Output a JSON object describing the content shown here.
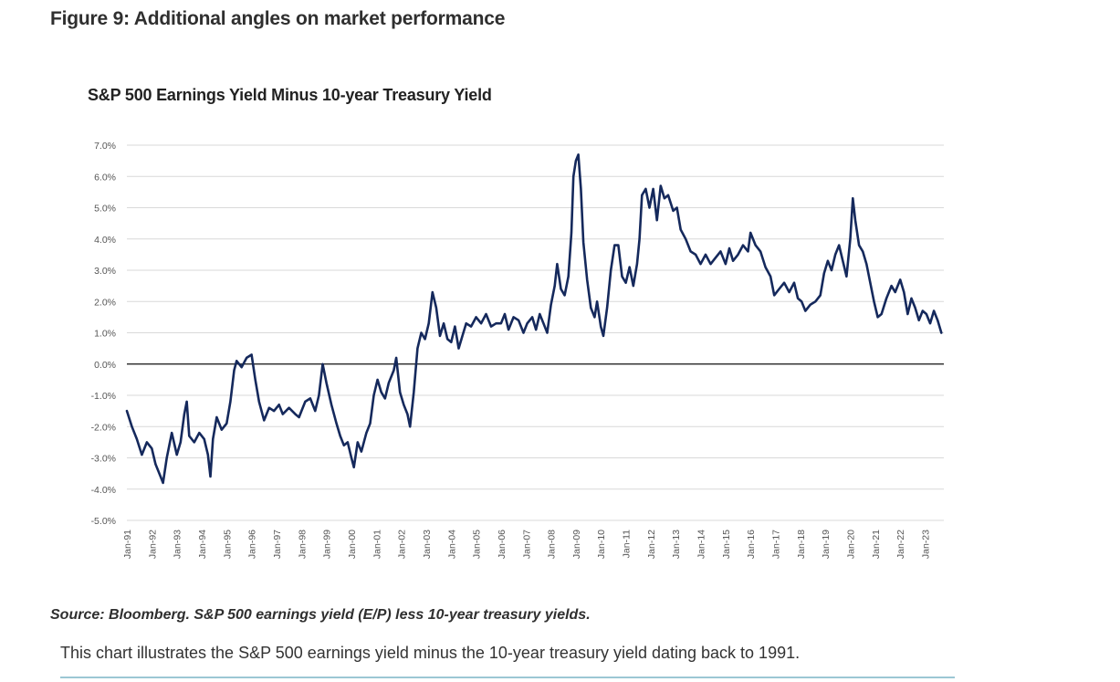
{
  "page": {
    "figure_title": "Figure 9: Additional angles on market performance",
    "source": "Source: Bloomberg. S&P 500 earnings yield (E/P) less 10-year treasury yields.",
    "caption": "This chart illustrates the S&P 500 earnings yield minus the 10-year treasury yield dating back to 1991."
  },
  "chart_data": {
    "type": "line",
    "title": "S&P 500 Earnings Yield Minus 10-year Treasury Yield",
    "xlabel": "",
    "ylabel": "",
    "ylim": [
      -5,
      7
    ],
    "yticks": [
      7,
      6,
      5,
      4,
      3,
      2,
      1,
      0,
      -1,
      -2,
      -3,
      -4,
      -5
    ],
    "ytick_labels": [
      "7.0%",
      "6.0%",
      "5.0%",
      "4.0%",
      "3.0%",
      "2.0%",
      "1.0%",
      "0.0%",
      "-1.0%",
      "-2.0%",
      "-3.0%",
      "-4.0%",
      "-5.0%"
    ],
    "xlim": [
      1991.0,
      2023.75
    ],
    "xticks": [
      1991,
      1992,
      1993,
      1994,
      1995,
      1996,
      1997,
      1998,
      1999,
      2000,
      2001,
      2002,
      2003,
      2004,
      2005,
      2006,
      2007,
      2008,
      2009,
      2010,
      2011,
      2012,
      2013,
      2014,
      2015,
      2016,
      2017,
      2018,
      2019,
      2020,
      2021,
      2022,
      2023
    ],
    "xtick_labels": [
      "Jan-91",
      "Jan-92",
      "Jan-93",
      "Jan-94",
      "Jan-95",
      "Jan-96",
      "Jan-97",
      "Jan-98",
      "Jan-99",
      "Jan-00",
      "Jan-01",
      "Jan-02",
      "Jan-03",
      "Jan-04",
      "Jan-05",
      "Jan-06",
      "Jan-07",
      "Jan-08",
      "Jan-09",
      "Jan-10",
      "Jan-11",
      "Jan-12",
      "Jan-13",
      "Jan-14",
      "Jan-15",
      "Jan-16",
      "Jan-17",
      "Jan-18",
      "Jan-19",
      "Jan-20",
      "Jan-21",
      "Jan-22",
      "Jan-23"
    ],
    "grid": true,
    "zero_line": true,
    "legend": "none",
    "line_color": "#15295c",
    "grid_color": "#d9d9d9",
    "series": [
      {
        "name": "",
        "points": [
          [
            1991.0,
            -1.5
          ],
          [
            1991.2,
            -2.0
          ],
          [
            1991.4,
            -2.4
          ],
          [
            1991.6,
            -2.9
          ],
          [
            1991.8,
            -2.5
          ],
          [
            1992.0,
            -2.7
          ],
          [
            1992.15,
            -3.2
          ],
          [
            1992.35,
            -3.6
          ],
          [
            1992.45,
            -3.8
          ],
          [
            1992.6,
            -3.0
          ],
          [
            1992.8,
            -2.2
          ],
          [
            1993.0,
            -2.9
          ],
          [
            1993.15,
            -2.5
          ],
          [
            1993.3,
            -1.6
          ],
          [
            1993.4,
            -1.2
          ],
          [
            1993.5,
            -2.3
          ],
          [
            1993.7,
            -2.5
          ],
          [
            1993.9,
            -2.2
          ],
          [
            1994.1,
            -2.4
          ],
          [
            1994.25,
            -2.9
          ],
          [
            1994.35,
            -3.6
          ],
          [
            1994.45,
            -2.4
          ],
          [
            1994.6,
            -1.7
          ],
          [
            1994.8,
            -2.1
          ],
          [
            1995.0,
            -1.9
          ],
          [
            1995.15,
            -1.2
          ],
          [
            1995.3,
            -0.2
          ],
          [
            1995.4,
            0.1
          ],
          [
            1995.6,
            -0.1
          ],
          [
            1995.8,
            0.2
          ],
          [
            1996.0,
            0.3
          ],
          [
            1996.15,
            -0.5
          ],
          [
            1996.3,
            -1.2
          ],
          [
            1996.5,
            -1.8
          ],
          [
            1996.7,
            -1.4
          ],
          [
            1996.9,
            -1.5
          ],
          [
            1997.1,
            -1.3
          ],
          [
            1997.25,
            -1.6
          ],
          [
            1997.5,
            -1.4
          ],
          [
            1997.75,
            -1.6
          ],
          [
            1997.9,
            -1.7
          ],
          [
            1998.0,
            -1.5
          ],
          [
            1998.15,
            -1.2
          ],
          [
            1998.35,
            -1.1
          ],
          [
            1998.55,
            -1.5
          ],
          [
            1998.7,
            -1.0
          ],
          [
            1998.85,
            0.0
          ],
          [
            1999.0,
            -0.6
          ],
          [
            1999.2,
            -1.3
          ],
          [
            1999.4,
            -1.9
          ],
          [
            1999.55,
            -2.3
          ],
          [
            1999.7,
            -2.6
          ],
          [
            1999.85,
            -2.5
          ],
          [
            2000.0,
            -3.0
          ],
          [
            2000.1,
            -3.3
          ],
          [
            2000.25,
            -2.5
          ],
          [
            2000.4,
            -2.8
          ],
          [
            2000.6,
            -2.2
          ],
          [
            2000.75,
            -1.9
          ],
          [
            2000.9,
            -1.0
          ],
          [
            2001.05,
            -0.5
          ],
          [
            2001.2,
            -0.9
          ],
          [
            2001.35,
            -1.1
          ],
          [
            2001.5,
            -0.6
          ],
          [
            2001.7,
            -0.2
          ],
          [
            2001.8,
            0.2
          ],
          [
            2001.95,
            -0.9
          ],
          [
            2002.1,
            -1.3
          ],
          [
            2002.25,
            -1.6
          ],
          [
            2002.35,
            -2.0
          ],
          [
            2002.5,
            -0.9
          ],
          [
            2002.65,
            0.5
          ],
          [
            2002.8,
            1.0
          ],
          [
            2002.95,
            0.8
          ],
          [
            2003.1,
            1.3
          ],
          [
            2003.25,
            2.3
          ],
          [
            2003.4,
            1.8
          ],
          [
            2003.55,
            0.9
          ],
          [
            2003.7,
            1.3
          ],
          [
            2003.85,
            0.8
          ],
          [
            2004.0,
            0.7
          ],
          [
            2004.15,
            1.2
          ],
          [
            2004.3,
            0.5
          ],
          [
            2004.45,
            0.9
          ],
          [
            2004.6,
            1.3
          ],
          [
            2004.8,
            1.2
          ],
          [
            2005.0,
            1.5
          ],
          [
            2005.2,
            1.3
          ],
          [
            2005.4,
            1.6
          ],
          [
            2005.6,
            1.2
          ],
          [
            2005.8,
            1.3
          ],
          [
            2006.0,
            1.3
          ],
          [
            2006.15,
            1.6
          ],
          [
            2006.3,
            1.1
          ],
          [
            2006.5,
            1.5
          ],
          [
            2006.7,
            1.4
          ],
          [
            2006.9,
            1.0
          ],
          [
            2007.05,
            1.3
          ],
          [
            2007.25,
            1.5
          ],
          [
            2007.4,
            1.1
          ],
          [
            2007.55,
            1.6
          ],
          [
            2007.7,
            1.3
          ],
          [
            2007.85,
            1.0
          ],
          [
            2008.0,
            1.9
          ],
          [
            2008.15,
            2.5
          ],
          [
            2008.25,
            3.2
          ],
          [
            2008.4,
            2.4
          ],
          [
            2008.55,
            2.2
          ],
          [
            2008.7,
            2.8
          ],
          [
            2008.82,
            4.2
          ],
          [
            2008.9,
            6.0
          ],
          [
            2009.0,
            6.5
          ],
          [
            2009.1,
            6.7
          ],
          [
            2009.2,
            5.6
          ],
          [
            2009.3,
            3.9
          ],
          [
            2009.45,
            2.7
          ],
          [
            2009.6,
            1.8
          ],
          [
            2009.75,
            1.5
          ],
          [
            2009.85,
            2.0
          ],
          [
            2010.0,
            1.2
          ],
          [
            2010.1,
            0.9
          ],
          [
            2010.25,
            1.8
          ],
          [
            2010.4,
            3.0
          ],
          [
            2010.55,
            3.8
          ],
          [
            2010.7,
            3.8
          ],
          [
            2010.85,
            2.8
          ],
          [
            2011.0,
            2.6
          ],
          [
            2011.15,
            3.1
          ],
          [
            2011.3,
            2.5
          ],
          [
            2011.45,
            3.2
          ],
          [
            2011.55,
            4.0
          ],
          [
            2011.65,
            5.4
          ],
          [
            2011.8,
            5.6
          ],
          [
            2011.95,
            5.0
          ],
          [
            2012.1,
            5.6
          ],
          [
            2012.25,
            4.6
          ],
          [
            2012.4,
            5.7
          ],
          [
            2012.55,
            5.3
          ],
          [
            2012.7,
            5.4
          ],
          [
            2012.9,
            4.9
          ],
          [
            2013.05,
            5.0
          ],
          [
            2013.2,
            4.3
          ],
          [
            2013.4,
            4.0
          ],
          [
            2013.6,
            3.6
          ],
          [
            2013.8,
            3.5
          ],
          [
            2014.0,
            3.2
          ],
          [
            2014.2,
            3.5
          ],
          [
            2014.4,
            3.2
          ],
          [
            2014.6,
            3.4
          ],
          [
            2014.8,
            3.6
          ],
          [
            2015.0,
            3.2
          ],
          [
            2015.15,
            3.7
          ],
          [
            2015.3,
            3.3
          ],
          [
            2015.5,
            3.5
          ],
          [
            2015.7,
            3.8
          ],
          [
            2015.9,
            3.6
          ],
          [
            2016.0,
            4.2
          ],
          [
            2016.2,
            3.8
          ],
          [
            2016.4,
            3.6
          ],
          [
            2016.6,
            3.1
          ],
          [
            2016.8,
            2.8
          ],
          [
            2016.95,
            2.2
          ],
          [
            2017.15,
            2.4
          ],
          [
            2017.35,
            2.6
          ],
          [
            2017.55,
            2.3
          ],
          [
            2017.75,
            2.6
          ],
          [
            2017.9,
            2.1
          ],
          [
            2018.05,
            2.0
          ],
          [
            2018.2,
            1.7
          ],
          [
            2018.4,
            1.9
          ],
          [
            2018.6,
            2.0
          ],
          [
            2018.8,
            2.2
          ],
          [
            2018.95,
            2.9
          ],
          [
            2019.1,
            3.3
          ],
          [
            2019.25,
            3.0
          ],
          [
            2019.4,
            3.5
          ],
          [
            2019.55,
            3.8
          ],
          [
            2019.7,
            3.3
          ],
          [
            2019.85,
            2.8
          ],
          [
            2020.0,
            4.0
          ],
          [
            2020.1,
            5.3
          ],
          [
            2020.2,
            4.6
          ],
          [
            2020.35,
            3.8
          ],
          [
            2020.5,
            3.6
          ],
          [
            2020.65,
            3.2
          ],
          [
            2020.8,
            2.6
          ],
          [
            2020.95,
            2.0
          ],
          [
            2021.1,
            1.5
          ],
          [
            2021.25,
            1.6
          ],
          [
            2021.45,
            2.1
          ],
          [
            2021.65,
            2.5
          ],
          [
            2021.8,
            2.3
          ],
          [
            2022.0,
            2.7
          ],
          [
            2022.15,
            2.3
          ],
          [
            2022.3,
            1.6
          ],
          [
            2022.45,
            2.1
          ],
          [
            2022.6,
            1.8
          ],
          [
            2022.75,
            1.4
          ],
          [
            2022.9,
            1.7
          ],
          [
            2023.05,
            1.6
          ],
          [
            2023.2,
            1.3
          ],
          [
            2023.35,
            1.7
          ],
          [
            2023.5,
            1.4
          ],
          [
            2023.65,
            1.0
          ]
        ]
      }
    ]
  }
}
